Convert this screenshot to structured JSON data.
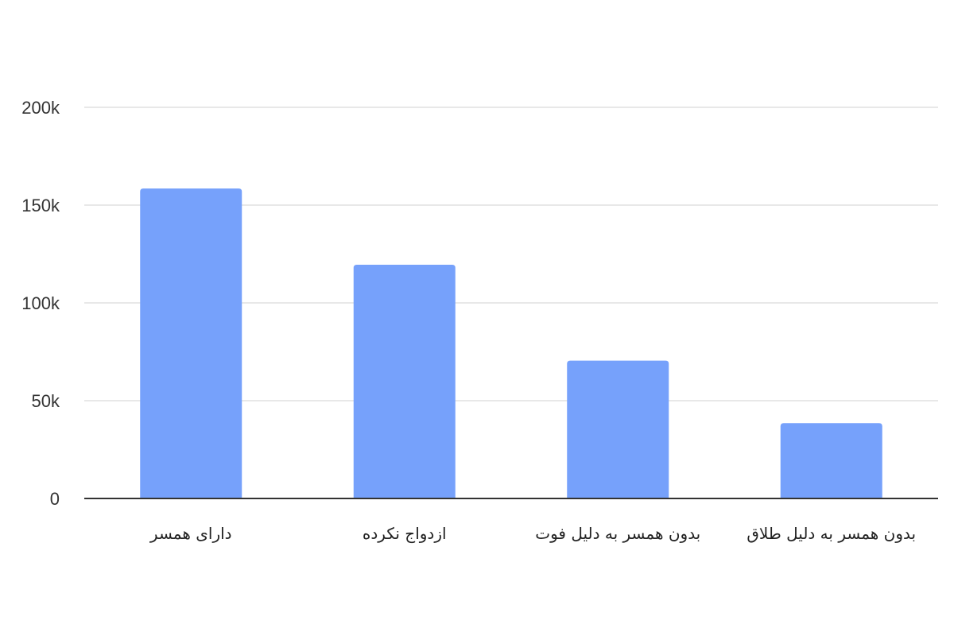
{
  "chart_data": {
    "type": "bar",
    "categories": [
      "دارای همسر",
      "ازدواج نکرده",
      "بدون همسر به دلیل فوت",
      "بدون همسر به دلیل طلاق"
    ],
    "values": [
      158500,
      119500,
      70500,
      38500
    ],
    "ylim": [
      0,
      200000
    ],
    "yticks": [
      {
        "value": 0,
        "label": "0"
      },
      {
        "value": 50000,
        "label": "50k"
      },
      {
        "value": 100000,
        "label": "100k"
      },
      {
        "value": 150000,
        "label": "150k"
      },
      {
        "value": 200000,
        "label": "200k"
      }
    ],
    "title": "",
    "xlabel": "",
    "ylabel": "",
    "grid": true,
    "legend": "none",
    "colors": {
      "bar": "#76a1fb",
      "grid": "#e0e0e0",
      "axis": "#333333"
    }
  }
}
